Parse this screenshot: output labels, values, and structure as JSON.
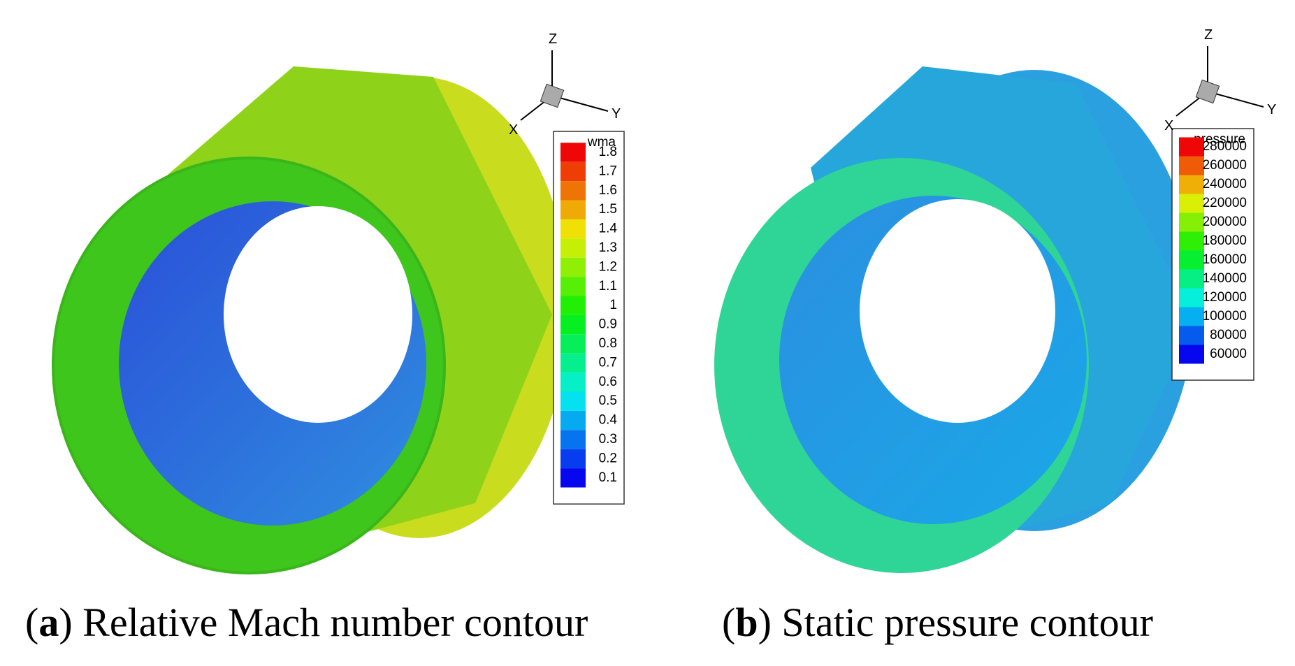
{
  "panels": [
    {
      "caption_label": "a",
      "caption": "Relative Mach number contour",
      "legend_title": "wma",
      "levels": [
        "1.8",
        "1.7",
        "1.6",
        "1.5",
        "1.4",
        "1.3",
        "1.2",
        "1.1",
        "1",
        "0.9",
        "0.8",
        "0.7",
        "0.6",
        "0.5",
        "0.4",
        "0.3",
        "0.2",
        "0.1"
      ],
      "axes": [
        "Z",
        "Y",
        "X"
      ]
    },
    {
      "caption_label": "b",
      "caption": "Static pressure contour",
      "legend_title": "pressure",
      "levels": [
        "280000",
        "260000",
        "240000",
        "220000",
        "200000",
        "180000",
        "160000",
        "140000",
        "120000",
        "100000",
        "80000",
        "60000"
      ],
      "axes": [
        "Z",
        "Y",
        "X"
      ]
    }
  ]
}
